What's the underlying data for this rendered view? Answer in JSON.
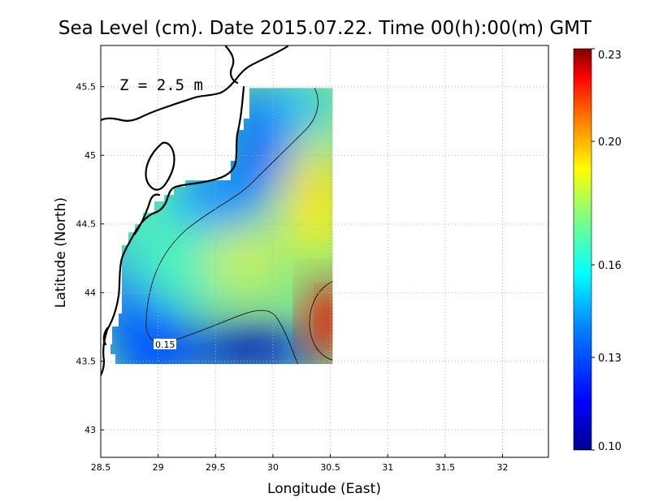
{
  "chart_data": {
    "type": "heatmap",
    "title": "Sea Level (cm). Date 2015.07.22. Time 00(h):00(m) GMT",
    "xlabel": "Longitude (East)",
    "ylabel": "Latitude (North)",
    "xlim": [
      28.5,
      32.4
    ],
    "ylim": [
      42.8,
      45.8
    ],
    "xticks": [
      "28.5",
      "29",
      "29.5",
      "30",
      "30.5",
      "31",
      "31.5",
      "32"
    ],
    "yticks": [
      "43",
      "43.5",
      "44",
      "44.5",
      "45",
      "45.5"
    ],
    "grid": true,
    "annotation": "Z = 2.5 m",
    "contour": {
      "level": 0.15,
      "label": "0.15"
    },
    "colorbar": {
      "min": 0.1,
      "max": 0.23,
      "ticks": [
        "0.10",
        "0.13",
        "0.16",
        "0.20",
        "0.23"
      ],
      "colormap": [
        "#00008f",
        "#0000ff",
        "#0080ff",
        "#00ffff",
        "#80ff80",
        "#ffff00",
        "#ff8000",
        "#ff0000",
        "#800000"
      ]
    },
    "domain": {
      "lon": [
        28.63,
        30.52
      ],
      "lat": [
        43.48,
        45.49
      ]
    }
  }
}
